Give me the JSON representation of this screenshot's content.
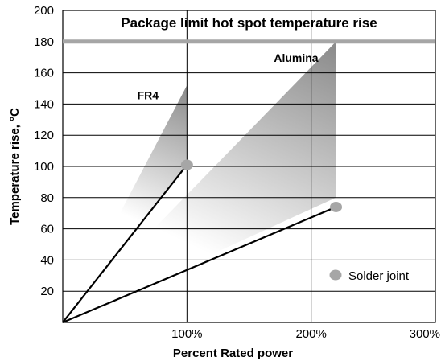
{
  "chart_data": {
    "type": "line",
    "title": "",
    "xlabel": "Percent Rated power",
    "ylabel": "Temperature rise, °C",
    "xlim": [
      0,
      300
    ],
    "ylim": [
      0,
      200
    ],
    "x_ticks": [
      "100%",
      "200%",
      "300%"
    ],
    "x_tick_values": [
      100,
      200,
      300
    ],
    "y_ticks": [
      "20",
      "40",
      "60",
      "80",
      "100",
      "120",
      "140",
      "160",
      "180",
      "200"
    ],
    "y_tick_values": [
      20,
      40,
      60,
      80,
      100,
      120,
      140,
      160,
      180,
      200
    ],
    "grid": true,
    "limit_line": {
      "label": "Package limit hot spot temperature rise",
      "y": 180,
      "color": "#a6a6a6"
    },
    "regions": [
      {
        "name": "FR4",
        "label": "FR4",
        "polygon": [
          [
            0,
            0
          ],
          [
            100,
            152
          ],
          [
            100,
            100
          ]
        ],
        "label_at": [
          60,
          143
        ]
      },
      {
        "name": "Alumina",
        "label": "Alumina",
        "polygon": [
          [
            0,
            0
          ],
          [
            220,
            180
          ],
          [
            220,
            80
          ]
        ],
        "label_at": [
          170,
          167
        ]
      }
    ],
    "series": [
      {
        "name": "FR4",
        "x": [
          0,
          100
        ],
        "y": [
          0,
          101
        ]
      },
      {
        "name": "Alumina",
        "x": [
          0,
          220
        ],
        "y": [
          0,
          74
        ]
      }
    ],
    "points": [
      {
        "series": "FR4",
        "x": 100,
        "y": 101
      },
      {
        "series": "Alumina",
        "x": 220,
        "y": 74
      }
    ],
    "legend": {
      "label": "Solder joint",
      "position": "bottom-right",
      "marker_color": "#a6a6a6"
    },
    "colors": {
      "line": "#000000",
      "marker": "#a6a6a6",
      "gradient_dark": "#8c8c8c",
      "gradient_light": "#ffffff"
    }
  }
}
